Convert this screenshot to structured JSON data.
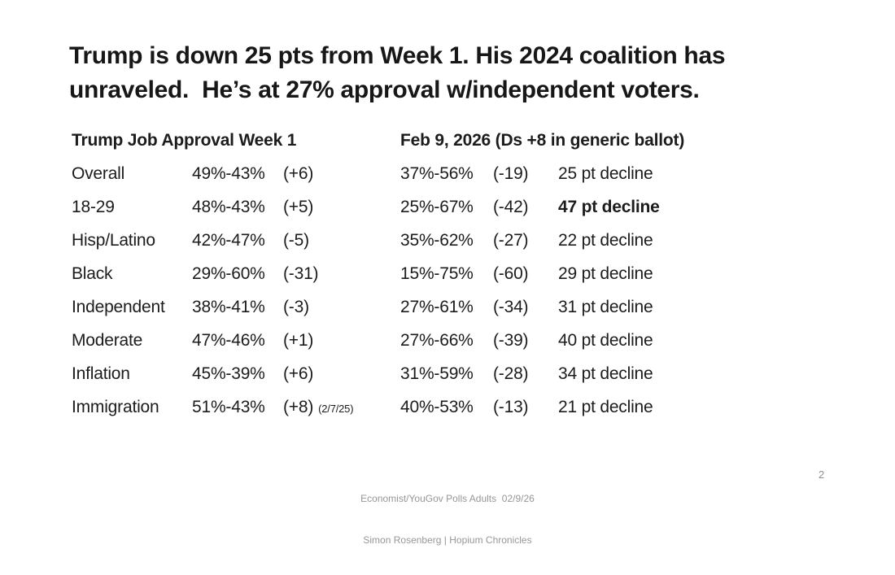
{
  "slide": {
    "title": "Trump is down 25 pts from Week 1. His 2024 coalition has\nunraveled.  He’s at 27% approval w/independent voters.",
    "page_number": "2",
    "footer": {
      "line1": "Economist/YouGov Polls Adults  02/9/26",
      "line2": "Simon Rosenberg | Hopium Chronicles"
    }
  },
  "table": {
    "headers": {
      "week1": "Trump Job Approval Week 1",
      "feb9": "Feb 9, 2026 (Ds +8 in generic ballot)"
    },
    "rows": [
      {
        "label": "Overall",
        "week1": "49%-43%",
        "week1_margin": "(+6)",
        "week1_note": "",
        "feb9": "37%-56%",
        "feb9_margin": "(-19)",
        "decline": "25 pt decline",
        "bold_decline": false
      },
      {
        "label": "18-29",
        "week1": "48%-43%",
        "week1_margin": "(+5)",
        "week1_note": "",
        "feb9": "25%-67%",
        "feb9_margin": "(-42)",
        "decline": "47 pt decline",
        "bold_decline": true
      },
      {
        "label": "Hisp/Latino",
        "week1": "42%-47%",
        "week1_margin": "(-5)",
        "week1_note": "",
        "feb9": "35%-62%",
        "feb9_margin": "(-27)",
        "decline": "22 pt decline",
        "bold_decline": false
      },
      {
        "label": "Black",
        "week1": "29%-60%",
        "week1_margin": "(-31)",
        "week1_note": "",
        "feb9": "15%-75%",
        "feb9_margin": "(-60)",
        "decline": "29 pt decline",
        "bold_decline": false
      },
      {
        "label": "Independent",
        "week1": "38%-41%",
        "week1_margin": "(-3)",
        "week1_note": "",
        "feb9": "27%-61%",
        "feb9_margin": "(-34)",
        "decline": "31 pt decline",
        "bold_decline": false
      },
      {
        "label": "Moderate",
        "week1": "47%-46%",
        "week1_margin": "(+1)",
        "week1_note": "",
        "feb9": "27%-66%",
        "feb9_margin": "(-39)",
        "decline": "40 pt decline",
        "bold_decline": false
      },
      {
        "label": "Inflation",
        "week1": "45%-39%",
        "week1_margin": "(+6)",
        "week1_note": "",
        "feb9": "31%-59%",
        "feb9_margin": "(-28)",
        "decline": "34 pt decline",
        "bold_decline": false
      },
      {
        "label": "Immigration",
        "week1": "51%-43%",
        "week1_margin": "(+8)",
        "week1_note": "(2/7/25)",
        "feb9": "40%-53%",
        "feb9_margin": "(-13)",
        "decline": "21 pt decline",
        "bold_decline": false
      }
    ]
  }
}
